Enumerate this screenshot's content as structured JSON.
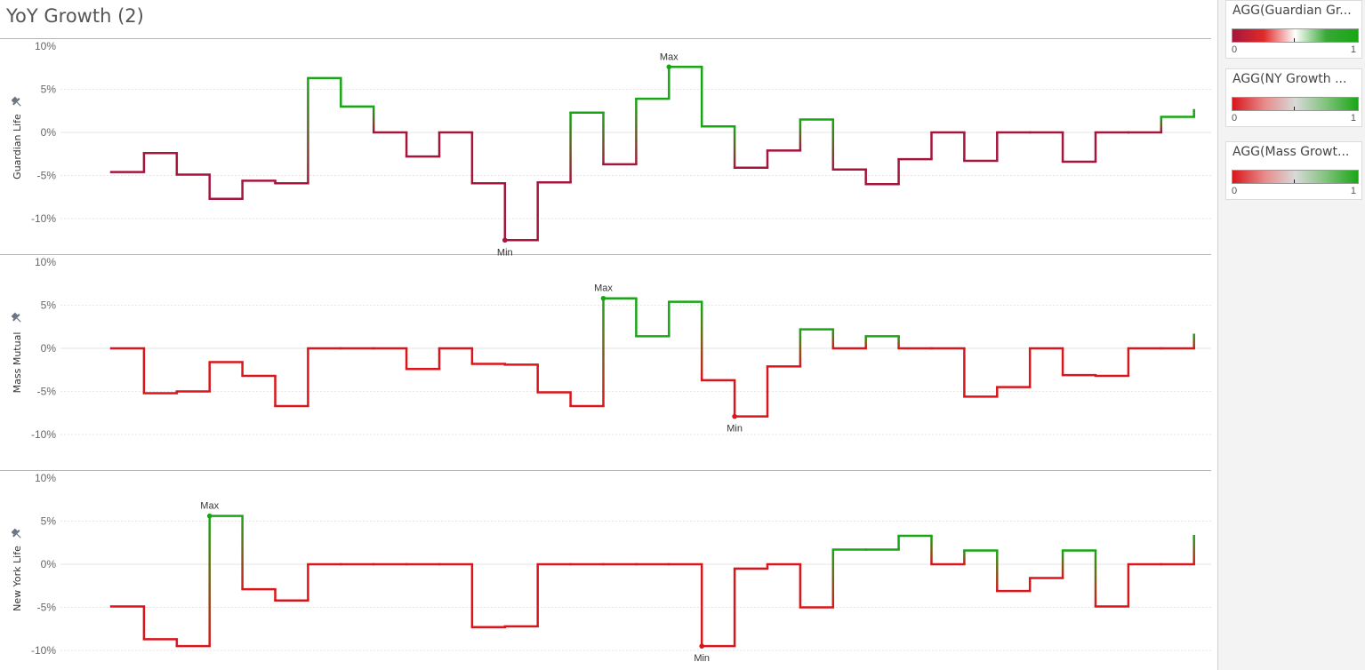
{
  "title": "YoY Growth (2)",
  "colors": {
    "red": "#d8161b",
    "maroon": "#a5163c",
    "green": "#19a615",
    "pin": "#6a7384"
  },
  "legend": [
    {
      "title": "AGG(Guardian Gr...",
      "min": "0",
      "max": "1",
      "palette": [
        "#a5163c",
        "#e22a2a",
        "#ffffff",
        "#37a836",
        "#19a615"
      ]
    },
    {
      "title": "AGG(NY Growth ...",
      "min": "0",
      "max": "1",
      "palette": [
        "#d8161b",
        "#e88888",
        "#d9d9d9",
        "#7fc27a",
        "#19a615"
      ]
    },
    {
      "title": "AGG(Mass Growt...",
      "min": "0",
      "max": "1",
      "palette": [
        "#d8161b",
        "#e88888",
        "#d9d9d9",
        "#7fc27a",
        "#19a615"
      ]
    }
  ],
  "chart_data": {
    "type": "line",
    "line_shape": "step",
    "x_axis_labels": "none",
    "ylim": [
      -12,
      10
    ],
    "yticks": [
      "10%",
      "5%",
      "0%",
      "-5%",
      "-10%"
    ],
    "ytick_values": [
      10,
      5,
      0,
      -5,
      -10
    ],
    "grid": true,
    "panels": [
      {
        "name": "Guardian Life",
        "base_color": "maroon",
        "values": [
          -4.6,
          -2.4,
          -4.9,
          -7.7,
          -5.6,
          -5.9,
          6.3,
          3.0,
          0.0,
          -2.8,
          0.0,
          -5.9,
          -12.5,
          -5.8,
          2.3,
          -3.7,
          3.9,
          7.6,
          0.7,
          -4.1,
          -2.1,
          1.5,
          -4.3,
          -6.0,
          -3.1,
          0.0,
          -3.3,
          0.0,
          0.0,
          -3.4,
          0.0,
          0.0,
          1.8,
          2.7
        ],
        "max_label": "Max",
        "max_index": 17,
        "min_label": "Min",
        "min_index": 12
      },
      {
        "name": "Mass Mutual",
        "base_color": "red",
        "values": [
          0.0,
          -5.2,
          -5.0,
          -1.6,
          -3.2,
          -6.7,
          0.0,
          0.0,
          0.0,
          -2.4,
          0.0,
          -1.8,
          -1.9,
          -5.1,
          -6.7,
          5.8,
          1.4,
          5.4,
          -3.7,
          -7.9,
          -2.1,
          2.2,
          0.0,
          1.4,
          0.0,
          0.0,
          -5.6,
          -4.5,
          0.0,
          -3.1,
          -3.2,
          0.0,
          0.0,
          1.7
        ],
        "max_label": "Max",
        "max_index": 15,
        "min_label": "Min",
        "min_index": 19
      },
      {
        "name": "New York Life",
        "base_color": "red",
        "values": [
          -4.9,
          -8.7,
          -9.5,
          5.6,
          -2.9,
          -4.2,
          0.0,
          0.0,
          0.0,
          0.0,
          0.0,
          -7.3,
          -7.2,
          0.0,
          0.0,
          0.0,
          0.0,
          0.0,
          -9.5,
          -0.5,
          0.0,
          -5.0,
          1.7,
          1.7,
          3.3,
          0.0,
          1.6,
          -3.1,
          -1.6,
          1.6,
          -4.9,
          0.0,
          0.0,
          3.4
        ],
        "max_label": "Max",
        "max_index": 3,
        "min_label": "Min",
        "min_index": 18
      }
    ]
  }
}
